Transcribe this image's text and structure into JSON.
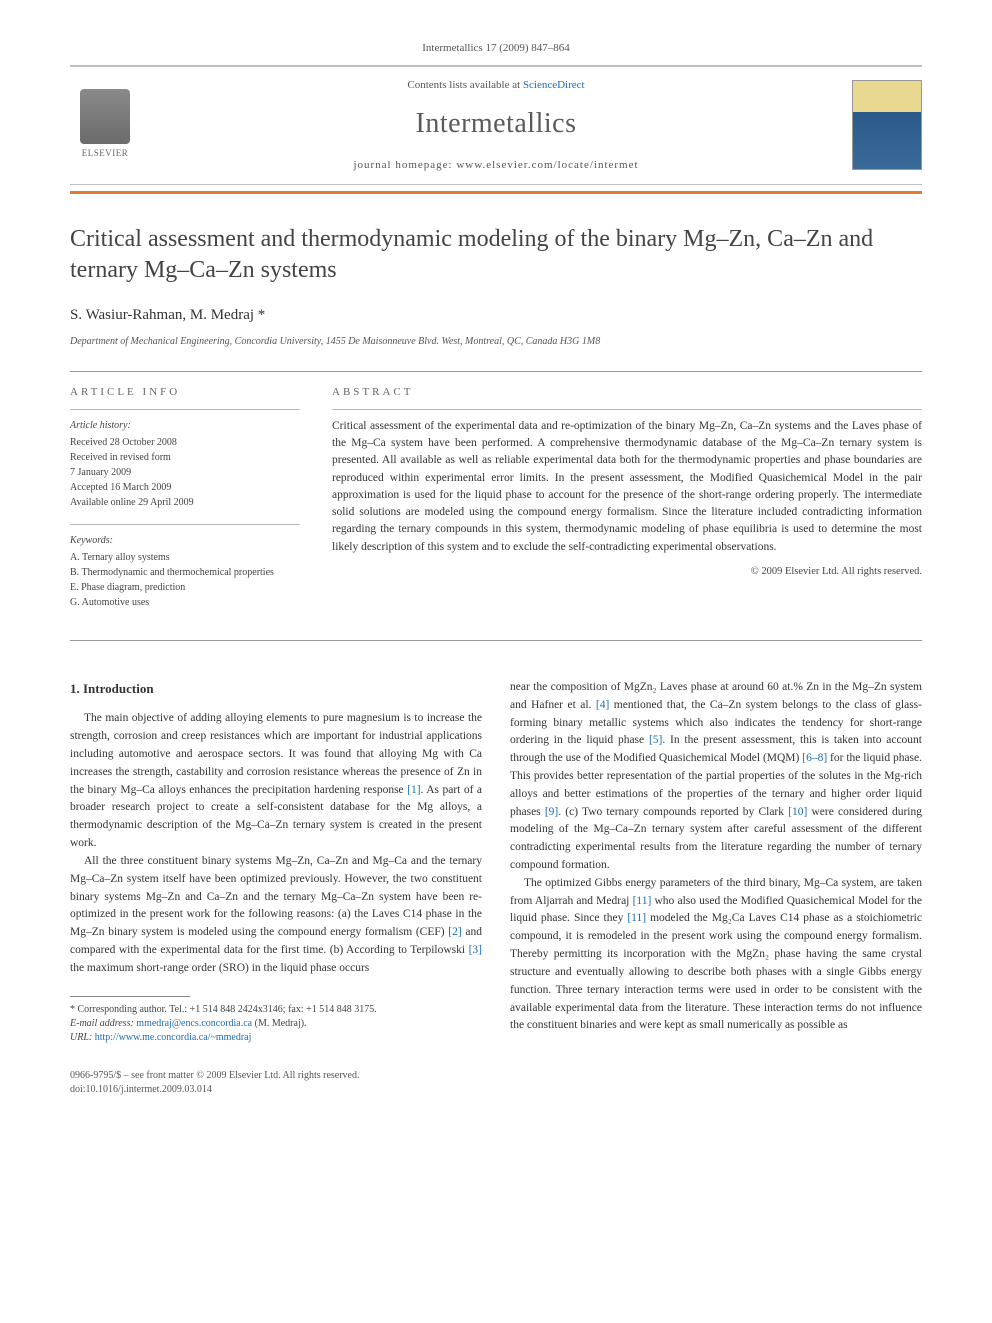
{
  "journal_ref": "Intermetallics 17 (2009) 847–864",
  "header": {
    "contents_prefix": "Contents lists available at ",
    "contents_link": "ScienceDirect",
    "journal_name": "Intermetallics",
    "homepage_prefix": "journal homepage: ",
    "homepage_url": "www.elsevier.com/locate/intermet",
    "publisher_name": "ELSEVIER"
  },
  "title": "Critical assessment and thermodynamic modeling of the binary Mg–Zn, Ca–Zn and ternary Mg–Ca–Zn systems",
  "authors": "S. Wasiur-Rahman, M. Medraj *",
  "affiliation": "Department of Mechanical Engineering, Concordia University, 1455 De Maisonneuve Blvd. West, Montreal, QC, Canada H3G 1M8",
  "article_info_label": "ARTICLE INFO",
  "abstract_label": "ABSTRACT",
  "history": {
    "label": "Article history:",
    "received": "Received 28 October 2008",
    "revised_1": "Received in revised form",
    "revised_2": "7 January 2009",
    "accepted": "Accepted 16 March 2009",
    "online": "Available online 29 April 2009"
  },
  "keywords": {
    "label": "Keywords:",
    "k1": "A. Ternary alloy systems",
    "k2": "B. Thermodynamic and thermochemical properties",
    "k3": "E. Phase diagram, prediction",
    "k4": "G. Automotive uses"
  },
  "abstract": "Critical assessment of the experimental data and re-optimization of the binary Mg–Zn, Ca–Zn systems and the Laves phase of the Mg–Ca system have been performed. A comprehensive thermodynamic database of the Mg–Ca–Zn ternary system is presented. All available as well as reliable experimental data both for the thermodynamic properties and phase boundaries are reproduced within experimental error limits. In the present assessment, the Modified Quasichemical Model in the pair approximation is used for the liquid phase to account for the presence of the short-range ordering properly. The intermediate solid solutions are modeled using the compound energy formalism. Since the literature included contradicting information regarding the ternary compounds in this system, thermodynamic modeling of phase equilibria is used to determine the most likely description of this system and to exclude the self-contradicting experimental observations.",
  "copyright": "© 2009 Elsevier Ltd. All rights reserved.",
  "section_1_heading": "1. Introduction",
  "body": {
    "p1_a": "The main objective of adding alloying elements to pure magnesium is to increase the strength, corrosion and creep resistances which are important for industrial applications including automotive and aerospace sectors. It was found that alloying Mg with Ca increases the strength, castability and corrosion resistance whereas the presence of Zn in the binary Mg–Ca alloys enhances the precipitation hardening response ",
    "ref1": "[1]",
    "p1_b": ". As part of a broader research project to create a self-consistent database for the Mg alloys, a thermodynamic description of the Mg–Ca–Zn ternary system is created in the present work.",
    "p2_a": "All the three constituent binary systems Mg–Zn, Ca–Zn and Mg–Ca and the ternary Mg–Ca–Zn system itself have been optimized previously. However, the two constituent binary systems Mg–Zn and Ca–Zn and the ternary Mg–Ca–Zn system have been re-optimized in the present work for the following reasons: (a) the Laves C14 phase in the Mg–Zn binary system is modeled using the compound energy formalism (CEF) ",
    "ref2": "[2]",
    "p2_b": " and compared with the experimental data for the first time. (b) According to Terpilowski ",
    "ref3": "[3]",
    "p2_c": " the maximum short-range order (SRO) in the liquid phase occurs ",
    "p3_a": "near the composition of MgZn₂ Laves phase at around 60 at.% Zn in the Mg–Zn system and Hafner et al. ",
    "ref4": "[4]",
    "p3_b": " mentioned that, the Ca–Zn system belongs to the class of glass-forming binary metallic systems which also indicates the tendency for short-range ordering in the liquid phase ",
    "ref5": "[5]",
    "p3_c": ". In the present assessment, this is taken into account through the use of the Modified Quasichemical Model (MQM) ",
    "ref6_8": "[6–8]",
    "p3_d": " for the liquid phase. This provides better representation of the partial properties of the solutes in the Mg-rich alloys and better estimations of the properties of the ternary and higher order liquid phases ",
    "ref9": "[9]",
    "p3_e": ". (c) Two ternary compounds reported by Clark ",
    "ref10": "[10]",
    "p3_f": " were considered during modeling of the Mg–Ca–Zn ternary system after careful assessment of the different contradicting experimental results from the literature regarding the number of ternary compound formation.",
    "p4_a": "The optimized Gibbs energy parameters of the third binary, Mg–Ca system, are taken from Aljarrah and Medraj ",
    "ref11a": "[11]",
    "p4_b": " who also used the Modified Quasichemical Model for the liquid phase. Since they ",
    "ref11b": "[11]",
    "p4_c": " modeled the Mg₂Ca Laves C14 phase as a stoichiometric compound, it is remodeled in the present work using the compound energy formalism. Thereby permitting its incorporation with the MgZn₂ phase having the same crystal structure and eventually allowing to describe both phases with a single Gibbs energy function. Three ternary interaction terms were used in order to be consistent with the available experimental data from the literature. These interaction terms do not influence the constituent binaries and were kept as small numerically as possible as"
  },
  "footnote": {
    "corr": "* Corresponding author. Tel.: +1 514 848 2424x3146; fax: +1 514 848 3175.",
    "email_label": "E-mail address: ",
    "email": "mmedraj@encs.concordia.ca",
    "email_suffix": " (M. Medraj).",
    "url_label": "URL: ",
    "url": "http://www.me.concordia.ca/~mmedraj"
  },
  "bottom": {
    "issn": "0966-9795/$ – see front matter © 2009 Elsevier Ltd. All rights reserved.",
    "doi": "doi:10.1016/j.intermet.2009.03.014"
  }
}
